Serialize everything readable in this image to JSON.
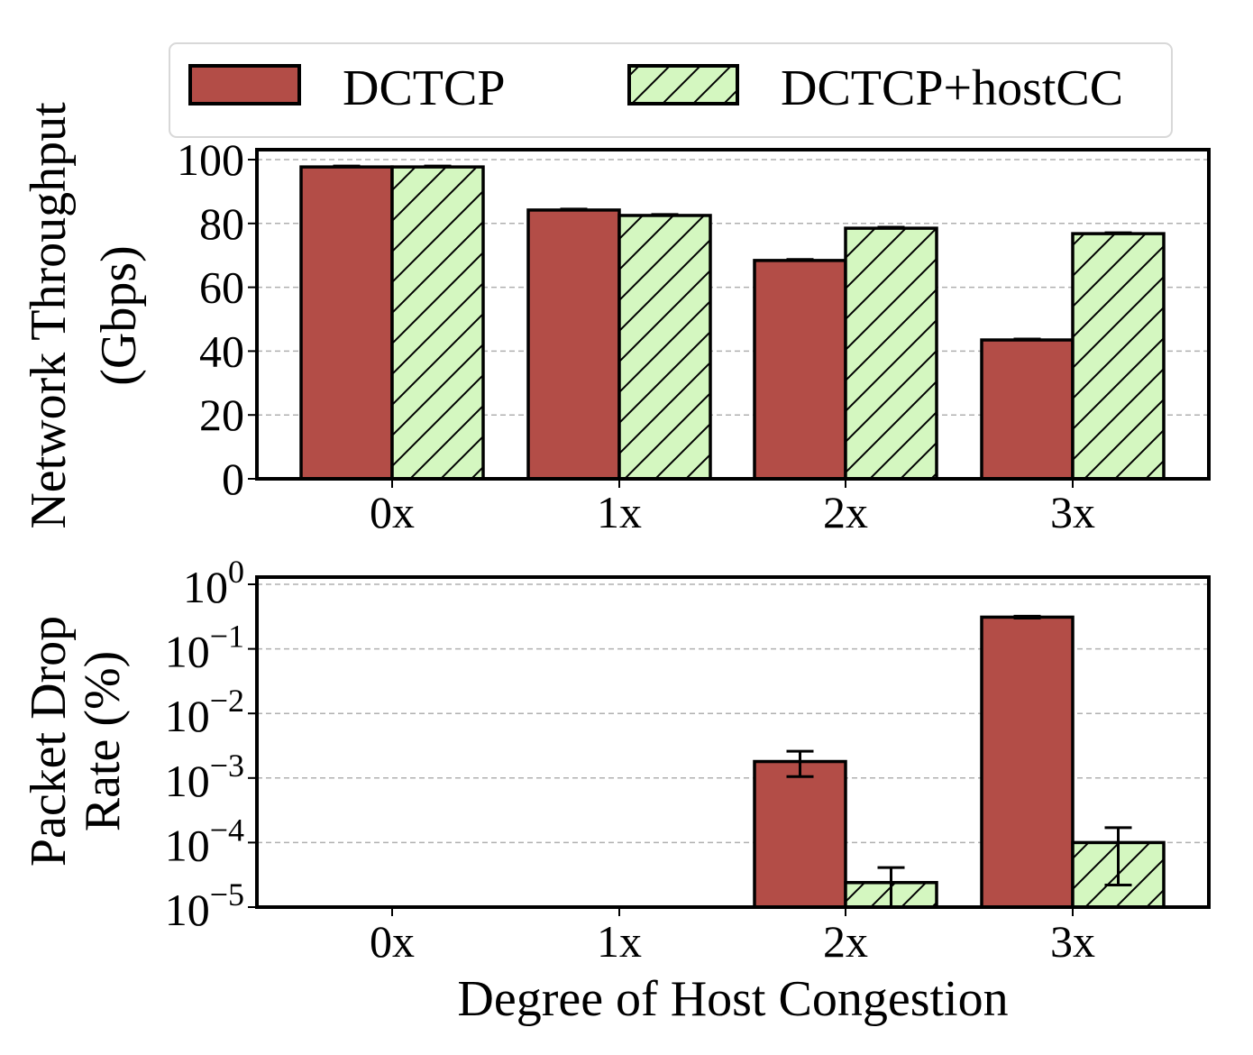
{
  "chart_data": [
    {
      "type": "bar",
      "title": "",
      "xlabel": "",
      "ylabel": [
        "Network Throughput",
        "(Gbps)"
      ],
      "yscale": "linear",
      "ylim": [
        0,
        100
      ],
      "yticks": [
        0,
        20,
        40,
        60,
        80,
        100
      ],
      "ytick_labels": [
        "0",
        "20",
        "40",
        "60",
        "80",
        "100"
      ],
      "grid": true,
      "categories": [
        "0x",
        "1x",
        "2x",
        "3x"
      ],
      "series": [
        {
          "name": "DCTCP",
          "values": [
            97.7,
            84.2,
            68.4,
            43.5
          ],
          "errors": [
            0.3,
            0.3,
            0.3,
            0.3
          ]
        },
        {
          "name": "DCTCP+hostCC",
          "values": [
            97.7,
            82.5,
            78.5,
            76.8
          ],
          "errors": [
            0.3,
            0.3,
            0.3,
            0.3
          ]
        }
      ]
    },
    {
      "type": "bar",
      "title": "",
      "xlabel": "Degree of Host Congestion",
      "ylabel": [
        "Packet Drop",
        "Rate (%)"
      ],
      "yscale": "log",
      "ylim": [
        1e-05,
        1
      ],
      "yticks": [
        0,
        -1,
        -2,
        -3,
        -4,
        -5
      ],
      "ytick_base": "10",
      "grid": true,
      "categories": [
        "0x",
        "1x",
        "2x",
        "3x"
      ],
      "series": [
        {
          "name": "DCTCP",
          "values": [
            null,
            null,
            0.0018,
            0.31
          ],
          "err_low": [
            null,
            null,
            0.00105,
            0.3
          ],
          "err_high": [
            null,
            null,
            0.0026,
            0.32
          ]
        },
        {
          "name": "DCTCP+hostCC",
          "values": [
            null,
            null,
            2.4e-05,
            0.0001
          ],
          "err_low": [
            null,
            null,
            1e-05,
            2.2e-05
          ],
          "err_high": [
            null,
            null,
            4.1e-05,
            0.00017
          ]
        }
      ]
    }
  ],
  "legend": {
    "placement": "top",
    "entries": [
      {
        "label": "DCTCP",
        "color": "#b34d47",
        "hatch": false
      },
      {
        "label": "DCTCP+hostCC",
        "color": "#d4f7c0",
        "hatch": true
      }
    ]
  },
  "colors": {
    "dctcp": "#b34d47",
    "hostcc": "#d4f7c0",
    "edge": "#000000",
    "grid": "#b0b0b0"
  }
}
